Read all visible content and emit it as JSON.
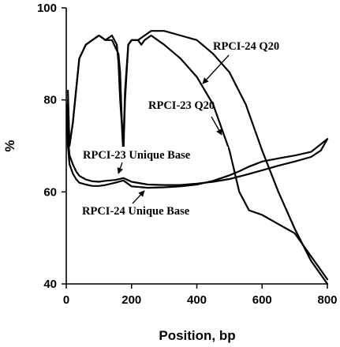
{
  "chart_data": {
    "type": "line",
    "xlabel": "Position, bp",
    "ylabel": "%",
    "xlim": [
      0,
      800
    ],
    "ylim": [
      40,
      100
    ],
    "xticks": [
      0,
      200,
      400,
      600,
      800
    ],
    "yticks": [
      40,
      60,
      80,
      100
    ],
    "grid": false,
    "series": [
      {
        "name": "RPCI-24 Q20",
        "x": [
          5,
          10,
          20,
          40,
          60,
          80,
          100,
          120,
          140,
          160,
          165,
          170,
          175,
          180,
          190,
          200,
          220,
          240,
          260,
          280,
          300,
          350,
          400,
          450,
          500,
          550,
          600,
          650,
          700,
          750,
          800
        ],
        "y": [
          82,
          70,
          75,
          89,
          92,
          93,
          94,
          93,
          93,
          90,
          86,
          76,
          70,
          82,
          92,
          93,
          93,
          94,
          95,
          95,
          95,
          94,
          93,
          90,
          86,
          79,
          69,
          60,
          52,
          45,
          40
        ]
      },
      {
        "name": "RPCI-23 Q20",
        "x": [
          5,
          10,
          20,
          40,
          60,
          80,
          100,
          120,
          140,
          155,
          160,
          165,
          170,
          175,
          180,
          190,
          200,
          220,
          230,
          240,
          260,
          280,
          300,
          350,
          400,
          450,
          500,
          530,
          560,
          600,
          650,
          700,
          750,
          800
        ],
        "y": [
          80,
          70,
          75,
          89,
          92,
          93,
          94,
          93,
          94,
          92,
          88,
          80,
          75,
          68,
          80,
          92,
          93,
          93,
          92,
          93,
          94,
          93,
          92,
          89,
          85,
          79,
          69,
          60,
          56,
          55,
          53,
          51,
          46,
          41
        ]
      },
      {
        "name": "RPCI-23 Unique Base",
        "x": [
          2,
          5,
          10,
          20,
          30,
          40,
          60,
          80,
          100,
          120,
          150,
          175,
          200,
          250,
          300,
          350,
          400,
          450,
          500,
          550,
          600,
          650,
          700,
          750,
          780,
          800
        ],
        "y": [
          79,
          72,
          68,
          66,
          64.5,
          63.5,
          62.7,
          62.3,
          62.2,
          62.4,
          62.6,
          63,
          62.2,
          61.6,
          61.5,
          61.5,
          61.8,
          62.2,
          62.8,
          63.7,
          64.7,
          65.7,
          66.6,
          67.6,
          69,
          71.5
        ]
      },
      {
        "name": "RPCI-24 Unique Base",
        "x": [
          2,
          5,
          10,
          20,
          30,
          40,
          60,
          80,
          100,
          120,
          150,
          175,
          200,
          250,
          300,
          350,
          400,
          450,
          500,
          530,
          560,
          600,
          650,
          700,
          750,
          800
        ],
        "y": [
          78,
          70,
          66,
          64,
          62.8,
          62,
          61.6,
          61.3,
          61.3,
          61.5,
          62,
          62.5,
          61.2,
          60.9,
          61,
          61.2,
          61.6,
          62.4,
          63.6,
          64.5,
          65.5,
          66.6,
          67.3,
          67.9,
          68.7,
          71.5
        ]
      }
    ],
    "annotations": [
      {
        "text": "RPCI-24 Q20",
        "target_series": "RPCI-24 Q20"
      },
      {
        "text": "RPCI-23 Q20",
        "target_series": "RPCI-23 Q20"
      },
      {
        "text": "RPCI-23 Unique Base",
        "target_series": "RPCI-23 Unique Base"
      },
      {
        "text": "RPCI-24 Unique Base",
        "target_series": "RPCI-24 Unique Base"
      }
    ]
  }
}
